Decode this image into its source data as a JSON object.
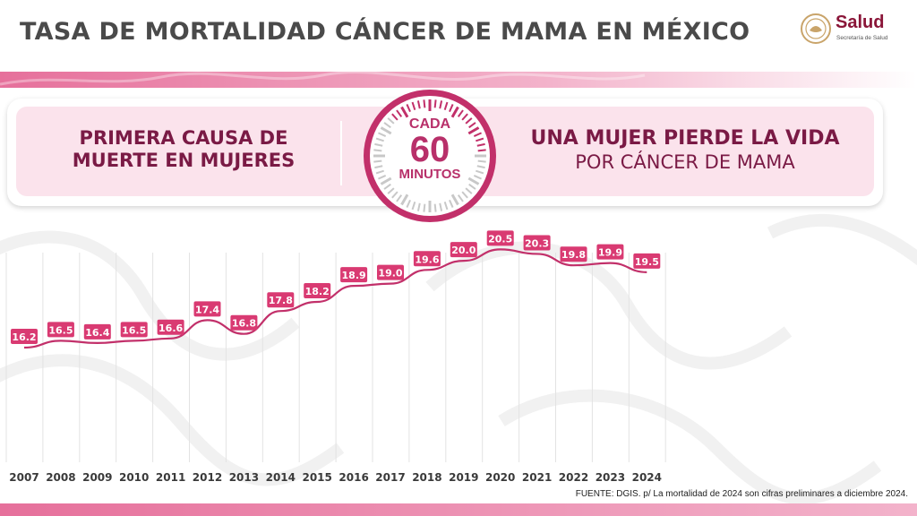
{
  "header": {
    "title": "TASA DE MORTALIDAD CÁNCER DE MAMA EN MÉXICO",
    "logo_word": "Salud",
    "logo_sub": "Secretaría de Salud"
  },
  "banner": {
    "left_line1": "PRIMERA CAUSA DE",
    "left_line2": "MUERTE EN MUJERES",
    "clock_top": "CADA",
    "clock_number": "60",
    "clock_bottom": "MINUTOS",
    "right_line1": "UNA MUJER PIERDE LA VIDA",
    "right_line2": "POR CÁNCER DE MAMA"
  },
  "colors": {
    "accent": "#d4356f",
    "label_bg": "#d93a72",
    "line": "#c2306a",
    "dark_text": "#4a4a4a",
    "banner_text": "#7a1a45",
    "banner_bg": "#fbe3ec"
  },
  "chart_data": {
    "type": "line",
    "title": "",
    "xlabel": "",
    "ylabel": "",
    "categories": [
      "2007",
      "2008",
      "2009",
      "2010",
      "2011",
      "2012",
      "2013",
      "2014",
      "2015",
      "2016",
      "2017",
      "2018",
      "2019",
      "2020",
      "2021",
      "2022",
      "2023",
      "2024"
    ],
    "values": [
      16.2,
      16.5,
      16.4,
      16.5,
      16.6,
      17.4,
      16.8,
      17.8,
      18.2,
      18.9,
      19.0,
      19.6,
      20.0,
      20.5,
      20.3,
      19.8,
      19.9,
      19.5
    ],
    "value_labels": [
      "16.2",
      "16.5",
      "16.4",
      "16.5",
      "16.6",
      "17.4",
      "16.8",
      "17.8",
      "18.2",
      "18.9",
      "19.0",
      "19.6",
      "20.0",
      "20.5",
      "20.3",
      "19.8",
      "19.9",
      "19.5"
    ],
    "grid": "vertical",
    "legend": "none"
  },
  "footnote": "FUENTE: DGIS. p/ La mortalidad de 2024 son cifras preliminares a diciembre 2024."
}
